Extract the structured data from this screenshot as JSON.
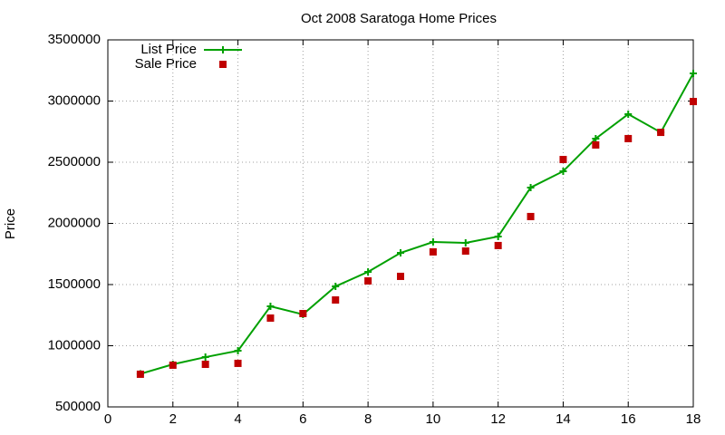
{
  "chart_data": {
    "type": "line",
    "title": "Oct 2008 Saratoga Home Prices",
    "y_label": "Price",
    "x": [
      1,
      2,
      3,
      4,
      5,
      6,
      7,
      8,
      9,
      10,
      11,
      12,
      13,
      14,
      15,
      16,
      17,
      18
    ],
    "series": [
      {
        "name": "List Price",
        "color": "#00a000",
        "style": "linespoints",
        "values": [
          770000,
          848000,
          907000,
          959000,
          1322000,
          1256000,
          1485000,
          1604000,
          1759000,
          1848000,
          1841000,
          1893000,
          2293000,
          2426000,
          2693000,
          2893000,
          2744000,
          3226000
        ]
      },
      {
        "name": "Sale Price",
        "color": "#c00000",
        "style": "points",
        "values": [
          767000,
          841000,
          848000,
          856000,
          1226000,
          1263000,
          1374000,
          1530000,
          1567000,
          1767000,
          1774000,
          1819000,
          2056000,
          2522000,
          2641000,
          2693000,
          2744000,
          2996000
        ]
      }
    ],
    "xlim": [
      0,
      18
    ],
    "xticks": [
      0,
      2,
      4,
      6,
      8,
      10,
      12,
      14,
      16,
      18
    ],
    "ylim": [
      500000,
      3500000
    ],
    "yticks": [
      500000,
      1000000,
      1500000,
      2000000,
      2500000,
      3000000,
      3500000
    ],
    "grid": true,
    "legend": "top-left"
  }
}
